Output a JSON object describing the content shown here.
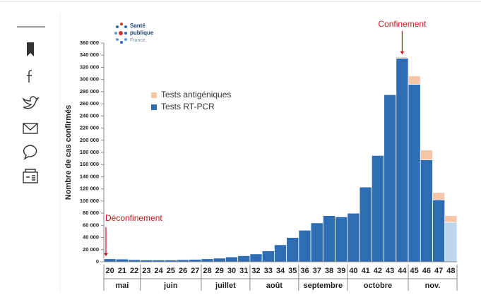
{
  "chart_data": {
    "type": "stacked_bar",
    "logo": [
      "Santé",
      "publique",
      "France"
    ],
    "y_label": "Nombre de cas confirmés",
    "categories": [
      "20",
      "21",
      "22",
      "23",
      "24",
      "25",
      "26",
      "27",
      "28",
      "29",
      "30",
      "31",
      "32",
      "33",
      "34",
      "35",
      "36",
      "37",
      "38",
      "39",
      "40",
      "41",
      "42",
      "43",
      "44",
      "45",
      "46",
      "47",
      "48"
    ],
    "months": [
      {
        "label": "mai",
        "span": 3
      },
      {
        "label": "juin",
        "span": 5
      },
      {
        "label": "juillet",
        "span": 4
      },
      {
        "label": "août",
        "span": 4
      },
      {
        "label": "septembre",
        "span": 4
      },
      {
        "label": "octobre",
        "span": 5
      },
      {
        "label": "nov.",
        "span": 4
      }
    ],
    "series": [
      {
        "name": "Tests RT-PCR",
        "color": "#2e6db4",
        "colors": [
          "#2e6db4",
          "#2e6db4",
          "#2e6db4",
          "#2e6db4",
          "#2e6db4",
          "#2e6db4",
          "#2e6db4",
          "#2e6db4",
          "#2e6db4",
          "#2e6db4",
          "#2e6db4",
          "#2e6db4",
          "#2e6db4",
          "#2e6db4",
          "#2e6db4",
          "#2e6db4",
          "#2e6db4",
          "#2e6db4",
          "#2e6db4",
          "#2e6db4",
          "#2e6db4",
          "#2e6db4",
          "#2e6db4",
          "#2e6db4",
          "#2e6db4",
          "#2e6db4",
          "#2e6db4",
          "#2e6db4",
          "#bcd6ee"
        ],
        "values": [
          5000,
          4500,
          3500,
          3000,
          3000,
          3000,
          3500,
          4000,
          5000,
          6000,
          8000,
          10000,
          13000,
          18000,
          28000,
          40000,
          52000,
          64000,
          76000,
          74000,
          80000,
          123000,
          175000,
          275000,
          335000,
          292000,
          168000,
          102000,
          65000
        ]
      },
      {
        "name": "Tests antigéniques",
        "color": "#f6c6a8",
        "values": [
          0,
          0,
          0,
          0,
          0,
          0,
          0,
          0,
          0,
          0,
          0,
          0,
          0,
          0,
          0,
          0,
          0,
          0,
          0,
          0,
          0,
          0,
          0,
          0,
          2000,
          14000,
          16000,
          12000,
          11000
        ]
      }
    ],
    "legend_order": [
      1,
      0
    ],
    "annotations": [
      {
        "text": "Confinement",
        "category": 24
      },
      {
        "text": "Déconfinement",
        "category": 0
      }
    ],
    "ylim": [
      0,
      360000
    ],
    "yticks": [
      0,
      {
        "value": 20000,
        "label": "20 000"
      },
      {
        "value": 40000,
        "label": "40 000"
      },
      {
        "value": 60000,
        "label": "60 000"
      },
      {
        "value": 80000,
        "label": "80 000"
      },
      {
        "value": 100000,
        "label": "100 000"
      },
      {
        "value": 120000,
        "label": "120 000"
      },
      {
        "value": 140000,
        "label": "140 000"
      },
      {
        "value": 160000,
        "label": "160 000"
      },
      {
        "value": 180000,
        "label": "180 000"
      },
      {
        "value": 200000,
        "label": "200 000"
      },
      {
        "value": 220000,
        "label": "220 000"
      },
      {
        "value": 240000,
        "label": "240 000"
      },
      {
        "value": 260000,
        "label": "260 000"
      },
      {
        "value": 280000,
        "label": "280 000"
      },
      {
        "value": 300000,
        "label": "300 000"
      },
      {
        "value": 320000,
        "label": "320 000"
      },
      {
        "value": 340000,
        "label": "340 000"
      },
      {
        "value": 360000,
        "label": "360 000"
      }
    ],
    "grid": false
  }
}
